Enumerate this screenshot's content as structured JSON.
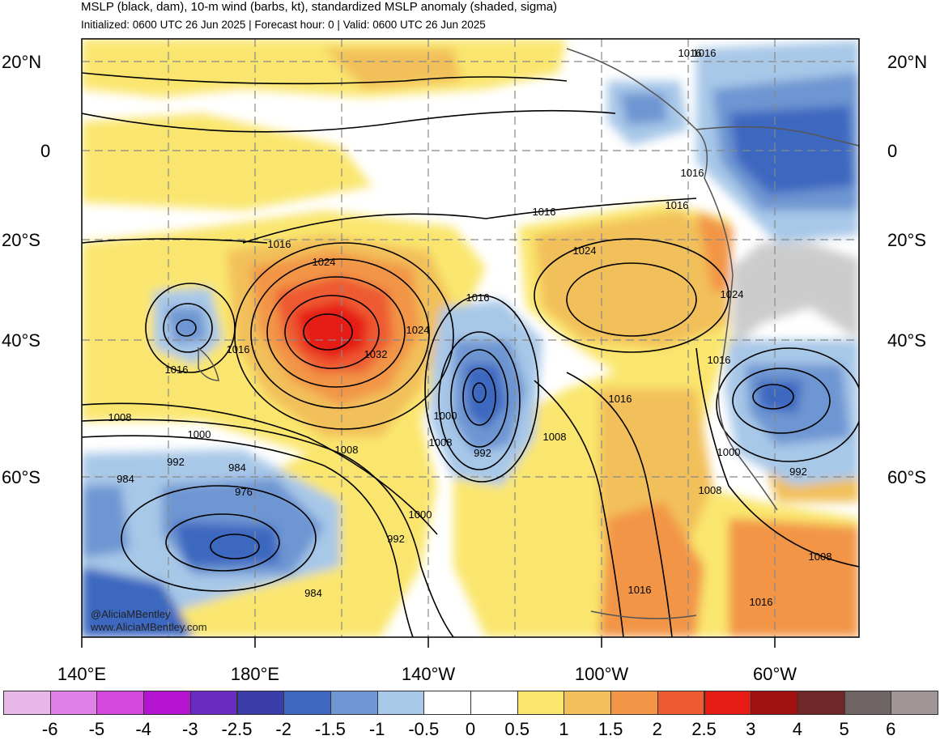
{
  "title": "MSLP (black, dam), 10-m wind (barbs, kt), standardized MSLP anomaly (shaded, sigma)",
  "subtitle": "Initialized: 0600 UTC 26 Jun 2025 | Forecast hour: 0 | Valid: 0600 UTC 26 Jun 2025",
  "lat_labels": [
    "20°N",
    "0",
    "20°S",
    "40°S",
    "60°S"
  ],
  "lon_labels": [
    "140°E",
    "180°E",
    "140°W",
    "100°W",
    "60°W"
  ],
  "colorbar": {
    "labels": [
      "-6",
      "-5",
      "-4",
      "-3",
      "-2.5",
      "-2",
      "-1.5",
      "-1",
      "-0.5",
      "0",
      "0.5",
      "1",
      "1.5",
      "2",
      "2.5",
      "3",
      "4",
      "5",
      "6"
    ],
    "colors": [
      "#e8b8e8",
      "#e080e8",
      "#d648dc",
      "#b414d0",
      "#6a2cc0",
      "#3a3ca8",
      "#3e68c0",
      "#6e96d2",
      "#a8c8e8",
      "#ffffff",
      "#ffffff",
      "#fae66e",
      "#f2c05a",
      "#f29546",
      "#ee5a32",
      "#e61c14",
      "#a01010",
      "#6e2828",
      "#6e6464",
      "#a09696"
    ]
  },
  "contour_labels": [
    "1016",
    "1016",
    "1016",
    "1016",
    "1016",
    "1024",
    "1024",
    "1016",
    "1024",
    "1016",
    "1024",
    "1032",
    "1016",
    "1016",
    "1016",
    "1008",
    "1000",
    "992",
    "984",
    "984",
    "976",
    "1008",
    "1000",
    "1008",
    "992",
    "1008",
    "1000",
    "992",
    "984",
    "1016",
    "1000",
    "992",
    "1008",
    "1008",
    "1016",
    "1016"
  ],
  "credit": [
    "@AliciaMBentley",
    "www.AliciaMBentley.com"
  ]
}
